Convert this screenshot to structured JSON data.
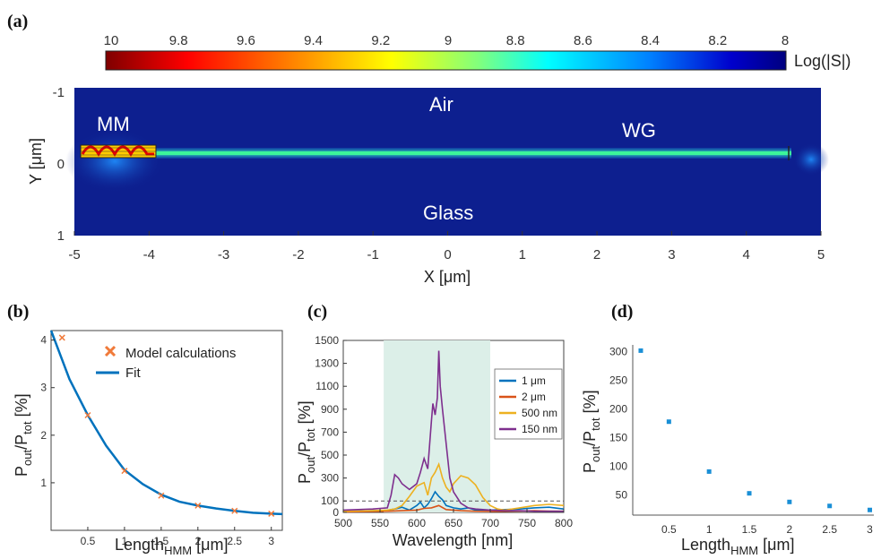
{
  "colors": {
    "field_bg": "#0d1f8f",
    "waveguide": "#38e8a0",
    "fit_line": "#0072bd",
    "model_marker": "#f07a3a",
    "series_1um": "#0072bd",
    "series_2um": "#d95319",
    "series_500nm": "#edb120",
    "series_150nm": "#7e2f8e",
    "highlight_band": "#dcefe8",
    "d_marker": "#1a8fd6"
  },
  "chart_data": [
    {
      "panel": "(a)",
      "type": "heatmap",
      "colorbar": {
        "ticks": [
          "10",
          "9.8",
          "9.6",
          "9.4",
          "9.2",
          "9",
          "8.8",
          "8.6",
          "8.4",
          "8.2",
          "8"
        ],
        "label": "Log(|S|)"
      },
      "xlabel": "X [μm]",
      "ylabel": "Y [μm]",
      "xticks": [
        "-5",
        "-4",
        "-3",
        "-2",
        "-1",
        "0",
        "1",
        "2",
        "3",
        "4",
        "5"
      ],
      "yticks": [
        "-1",
        "0",
        "1"
      ],
      "xlim": [
        -5,
        5
      ],
      "ylim": [
        -1,
        1
      ],
      "annotations": [
        "MM",
        "Air",
        "WG",
        "Glass"
      ]
    },
    {
      "panel": "(b)",
      "type": "scatter",
      "xlabel": "Length",
      "xlabel_sub": "HMM",
      "xlabel_unit": "[μm]",
      "ylabel": "P",
      "ylabel_sub1": "out",
      "ylabel_mid": "/P",
      "ylabel_sub2": "tot",
      "ylabel_unit": "[%]",
      "xticks": [
        "0.5",
        "1",
        "1.5",
        "2",
        "2.5",
        "3"
      ],
      "yticks": [
        "1",
        "2",
        "3",
        "4"
      ],
      "xlim": [
        0,
        3.15
      ],
      "ylim": [
        0,
        4.2
      ],
      "legend": [
        "Model calculations",
        "Fit"
      ],
      "series": [
        {
          "name": "Model calculations",
          "x": [
            0.15,
            0.5,
            1.0,
            1.5,
            2.0,
            2.5,
            3.0
          ],
          "y": [
            4.05,
            2.42,
            1.25,
            0.73,
            0.52,
            0.41,
            0.35
          ]
        },
        {
          "name": "Fit",
          "x": [
            0.0,
            0.25,
            0.5,
            0.75,
            1.0,
            1.25,
            1.5,
            1.75,
            2.0,
            2.25,
            2.5,
            2.75,
            3.0,
            3.15
          ],
          "y": [
            4.2,
            3.18,
            2.42,
            1.78,
            1.27,
            0.97,
            0.75,
            0.6,
            0.52,
            0.46,
            0.41,
            0.37,
            0.35,
            0.34
          ]
        }
      ]
    },
    {
      "panel": "(c)",
      "type": "line",
      "xlabel": "Wavelength [nm]",
      "ylabel": "P",
      "ylabel_sub1": "out",
      "ylabel_mid": "/P",
      "ylabel_sub2": "tot",
      "ylabel_unit": "[%]",
      "xticks": [
        "500",
        "550",
        "600",
        "650",
        "700",
        "750",
        "800"
      ],
      "yticks": [
        "0",
        "100",
        "300",
        "500",
        "700",
        "900",
        "1100",
        "1300",
        "1500"
      ],
      "xlim": [
        500,
        800
      ],
      "ylim": [
        0,
        1500
      ],
      "band": [
        555,
        700
      ],
      "reference_line": 100,
      "legend": [
        "1 μm",
        "2 μm",
        "500 nm",
        "150 nm"
      ],
      "series": [
        {
          "name": "1 μm",
          "x": [
            500,
            520,
            540,
            560,
            570,
            580,
            590,
            600,
            605,
            610,
            615,
            620,
            625,
            630,
            635,
            640,
            650,
            660,
            670,
            680,
            690,
            700,
            720,
            740,
            760,
            780,
            800
          ],
          "y": [
            10,
            12,
            15,
            18,
            30,
            45,
            20,
            60,
            90,
            40,
            70,
            120,
            180,
            140,
            110,
            60,
            40,
            30,
            40,
            20,
            15,
            20,
            25,
            30,
            40,
            45,
            30
          ]
        },
        {
          "name": "2 μm",
          "x": [
            500,
            520,
            540,
            560,
            580,
            600,
            610,
            620,
            630,
            640,
            660,
            680,
            700,
            720,
            740,
            760,
            780,
            800
          ],
          "y": [
            5,
            6,
            8,
            10,
            15,
            20,
            35,
            40,
            60,
            25,
            15,
            10,
            8,
            10,
            12,
            15,
            12,
            10
          ]
        },
        {
          "name": "500 nm",
          "x": [
            500,
            520,
            540,
            560,
            570,
            580,
            590,
            600,
            610,
            615,
            620,
            625,
            630,
            635,
            640,
            645,
            650,
            660,
            670,
            680,
            690,
            700,
            710,
            720,
            740,
            760,
            780,
            800
          ],
          "y": [
            10,
            12,
            15,
            20,
            30,
            60,
            140,
            230,
            260,
            150,
            300,
            350,
            420,
            300,
            220,
            180,
            250,
            320,
            300,
            240,
            130,
            60,
            30,
            20,
            40,
            60,
            70,
            60
          ]
        },
        {
          "name": "150 nm",
          "x": [
            500,
            520,
            540,
            560,
            565,
            570,
            575,
            580,
            590,
            600,
            605,
            610,
            615,
            620,
            622,
            625,
            628,
            630,
            632,
            635,
            640,
            645,
            650,
            660,
            670,
            680,
            700,
            720,
            740,
            760,
            780,
            800
          ],
          "y": [
            20,
            25,
            30,
            40,
            150,
            330,
            300,
            250,
            200,
            250,
            350,
            470,
            380,
            800,
            950,
            850,
            1000,
            1410,
            1100,
            900,
            600,
            300,
            180,
            80,
            40,
            30,
            20,
            15,
            15,
            10,
            10,
            10
          ]
        }
      ]
    },
    {
      "panel": "(d)",
      "type": "scatter",
      "xlabel": "Length",
      "xlabel_sub": "HMM",
      "xlabel_unit": "[μm]",
      "ylabel": "P",
      "ylabel_sub1": "out",
      "ylabel_mid": "/P",
      "ylabel_sub2": "tot",
      "ylabel_unit": "[%]",
      "xticks": [
        "0.5",
        "1",
        "1.5",
        "2",
        "2.5",
        "3"
      ],
      "yticks": [
        "50",
        "100",
        "150",
        "200",
        "250",
        "300"
      ],
      "xlim": [
        0.05,
        3.05
      ],
      "ylim": [
        15,
        312
      ],
      "series": [
        {
          "name": "",
          "x": [
            0.15,
            0.5,
            1.0,
            1.5,
            2.0,
            2.5,
            3.0
          ],
          "y": [
            302,
            178,
            91,
            53,
            38,
            31,
            24
          ]
        }
      ]
    }
  ]
}
